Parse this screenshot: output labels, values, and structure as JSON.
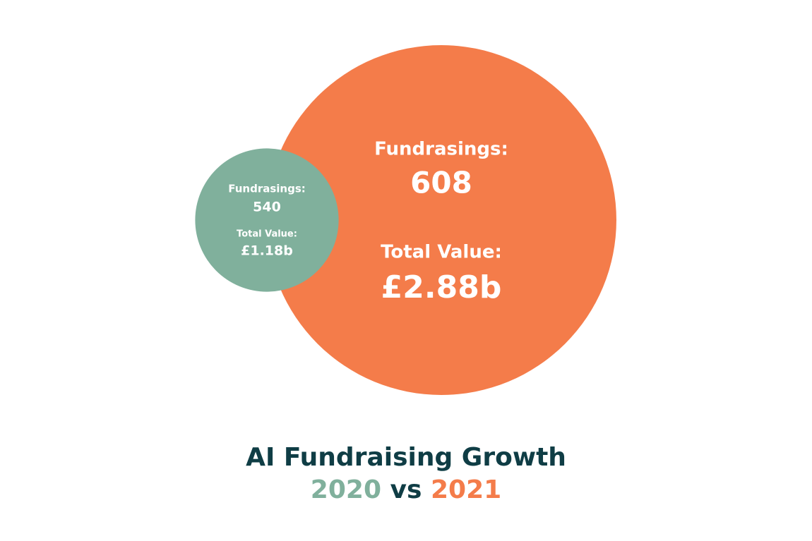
{
  "chart_data": {
    "type": "bubble",
    "title": "AI Fundraising Growth",
    "subtitle_separator": "vs",
    "value_names": [
      "Fundrasings:",
      "Total Value:"
    ],
    "series": [
      {
        "name": "2020",
        "color": "#80b09c",
        "values": [
          540,
          1.18
        ],
        "value_labels": [
          "540",
          "£1.18b"
        ]
      },
      {
        "name": "2021",
        "color": "#f47c4a",
        "values": [
          608,
          2.88
        ],
        "value_labels": [
          "608",
          "£2.88b"
        ]
      }
    ]
  }
}
